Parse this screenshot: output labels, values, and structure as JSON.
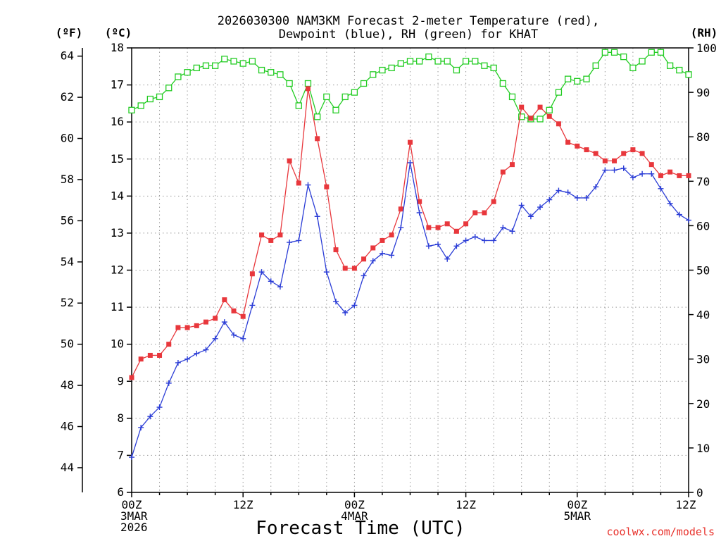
{
  "chart_data": {
    "type": "line",
    "title_line1": "2026030300 NAM3KM Forecast 2-meter Temperature (red),",
    "title_line2": "Dewpoint (blue), RH (green) for KHAT",
    "xlabel": "Forecast Time (UTC)",
    "credit": "coolwx.com/models",
    "units": {
      "fahrenheit": "(ºF)",
      "celsius": "(ºC)",
      "rh": "(RH)"
    },
    "xlim": [
      0,
      60
    ],
    "ylim_c": [
      6,
      18
    ],
    "ylim_rh": [
      0,
      100
    ],
    "celsius_ticks": [
      "6",
      "7",
      "8",
      "9",
      "10",
      "11",
      "12",
      "13",
      "14",
      "15",
      "16",
      "17",
      "18"
    ],
    "fahrenheit_ticks": [
      "44",
      "46",
      "48",
      "50",
      "52",
      "54",
      "56",
      "58",
      "60",
      "62",
      "64"
    ],
    "rh_ticks": [
      "0",
      "10",
      "20",
      "30",
      "40",
      "50",
      "60",
      "70",
      "80",
      "90",
      "100"
    ],
    "x_ticks": [
      {
        "hour": 0,
        "lines": [
          "00Z",
          "3MAR",
          "2026"
        ]
      },
      {
        "hour": 12,
        "lines": [
          "12Z"
        ]
      },
      {
        "hour": 24,
        "lines": [
          "00Z",
          "4MAR"
        ]
      },
      {
        "hour": 36,
        "lines": [
          "12Z"
        ]
      },
      {
        "hour": 48,
        "lines": [
          "00Z",
          "5MAR"
        ]
      },
      {
        "hour": 60,
        "lines": [
          "12Z"
        ]
      }
    ],
    "colors": {
      "temperature": "#e8373c",
      "dewpoint": "#2a3cd6",
      "rh": "#22cc22",
      "grid": "#9a9a9a"
    },
    "series": [
      {
        "name": "Temperature (°C)",
        "axis": "celsius",
        "marker": "filled-square",
        "values": [
          9.1,
          9.6,
          9.7,
          9.7,
          10.0,
          10.45,
          10.45,
          10.5,
          10.6,
          10.7,
          11.2,
          10.9,
          10.75,
          11.9,
          12.95,
          12.8,
          12.95,
          14.95,
          14.35,
          16.9,
          15.55,
          14.25,
          12.55,
          12.05,
          12.05,
          12.3,
          12.6,
          12.8,
          12.95,
          13.65,
          15.45,
          13.85,
          13.15,
          13.15,
          13.25,
          13.05,
          13.25,
          13.55,
          13.55,
          13.85,
          14.65,
          14.85,
          16.4,
          16.1,
          16.4,
          16.15,
          15.95,
          15.45,
          15.35,
          15.25,
          15.15,
          14.95,
          14.95,
          15.15,
          15.25,
          15.15,
          14.85,
          14.55,
          14.65,
          14.55,
          14.55
        ]
      },
      {
        "name": "Dewpoint (°C)",
        "axis": "celsius",
        "marker": "plus",
        "values": [
          6.95,
          7.75,
          8.05,
          8.3,
          8.95,
          9.5,
          9.6,
          9.75,
          9.85,
          10.15,
          10.6,
          10.25,
          10.15,
          11.05,
          11.95,
          11.7,
          11.55,
          12.75,
          12.8,
          14.3,
          13.45,
          11.95,
          11.15,
          10.85,
          11.05,
          11.85,
          12.25,
          12.45,
          12.4,
          13.15,
          14.9,
          13.55,
          12.65,
          12.7,
          12.3,
          12.65,
          12.8,
          12.9,
          12.8,
          12.8,
          13.15,
          13.05,
          13.75,
          13.45,
          13.7,
          13.9,
          14.15,
          14.1,
          13.95,
          13.95,
          14.25,
          14.7,
          14.7,
          14.75,
          14.5,
          14.6,
          14.6,
          14.2,
          13.8,
          13.5,
          13.35
        ]
      },
      {
        "name": "RH (%)",
        "axis": "rh",
        "marker": "open-square",
        "values": [
          86,
          87,
          88.5,
          89,
          91,
          93.5,
          94.5,
          95.5,
          96,
          96,
          97.5,
          97,
          96.5,
          97,
          95,
          94.5,
          94,
          92,
          87,
          92,
          84.5,
          89,
          86,
          89,
          90,
          92,
          94,
          95,
          95.5,
          96.5,
          97,
          97,
          98,
          97,
          97,
          95,
          97,
          97,
          96,
          95.5,
          92,
          89,
          84.5,
          84,
          84,
          86,
          90,
          93,
          92.5,
          93,
          96,
          99,
          99,
          98,
          95.5,
          97,
          99,
          99,
          96,
          95,
          94
        ]
      }
    ]
  }
}
